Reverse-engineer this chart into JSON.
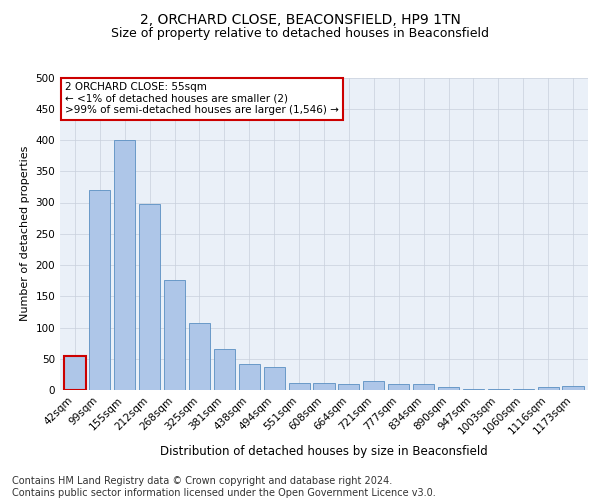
{
  "title": "2, ORCHARD CLOSE, BEACONSFIELD, HP9 1TN",
  "subtitle": "Size of property relative to detached houses in Beaconsfield",
  "xlabel": "Distribution of detached houses by size in Beaconsfield",
  "ylabel": "Number of detached properties",
  "categories": [
    "42sqm",
    "99sqm",
    "155sqm",
    "212sqm",
    "268sqm",
    "325sqm",
    "381sqm",
    "438sqm",
    "494sqm",
    "551sqm",
    "608sqm",
    "664sqm",
    "721sqm",
    "777sqm",
    "834sqm",
    "890sqm",
    "947sqm",
    "1003sqm",
    "1060sqm",
    "1116sqm",
    "1173sqm"
  ],
  "values": [
    55,
    320,
    400,
    297,
    176,
    107,
    65,
    41,
    37,
    11,
    11,
    9,
    15,
    9,
    9,
    5,
    2,
    1,
    1,
    5,
    6
  ],
  "bar_color": "#aec6e8",
  "bar_edge_color": "#5a8fc2",
  "annotation_box_text": "2 ORCHARD CLOSE: 55sqm\n← <1% of detached houses are smaller (2)\n>99% of semi-detached houses are larger (1,546) →",
  "annotation_box_color": "#ffffff",
  "annotation_box_edge_color": "#cc0000",
  "highlight_bar_index": 0,
  "highlight_bar_edge_color": "#cc0000",
  "ylim": [
    0,
    500
  ],
  "yticks": [
    0,
    50,
    100,
    150,
    200,
    250,
    300,
    350,
    400,
    450,
    500
  ],
  "background_color": "#eaf0f8",
  "footer_text": "Contains HM Land Registry data © Crown copyright and database right 2024.\nContains public sector information licensed under the Open Government Licence v3.0.",
  "title_fontsize": 10,
  "subtitle_fontsize": 9,
  "xlabel_fontsize": 8.5,
  "ylabel_fontsize": 8,
  "footer_fontsize": 7,
  "tick_fontsize": 7.5,
  "annot_fontsize": 7.5
}
